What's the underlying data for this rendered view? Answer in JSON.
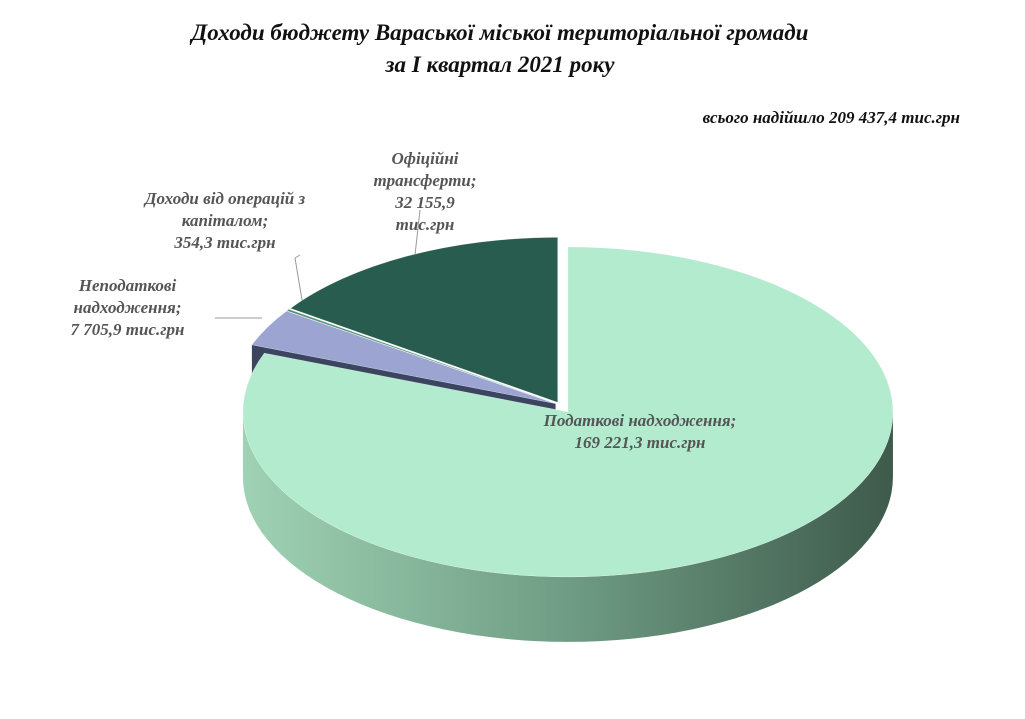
{
  "chart_data": {
    "type": "pie",
    "title": [
      "Доходи  бюджету Вараської міської територіальної громади",
      "за І квартал 2021 року"
    ],
    "subtitle": "всього надійшло 209 437,4 тис.грн",
    "categories": [
      "Податкові надходження;",
      "Неподаткові надходження;",
      "Доходи від операцій з капіталом;",
      "Офіційні трансферти;"
    ],
    "values": [
      169221.3,
      7705.9,
      354.3,
      32155.9
    ],
    "value_labels": [
      "169 221,3 тис.грн",
      "7 705,9 тис.грн",
      "354,3 тис.грн",
      "32 155,9 тис.грн"
    ],
    "colors": [
      "#b3ebcf",
      "#9ca5d2",
      "#4f8f78",
      "#275c4e"
    ]
  }
}
